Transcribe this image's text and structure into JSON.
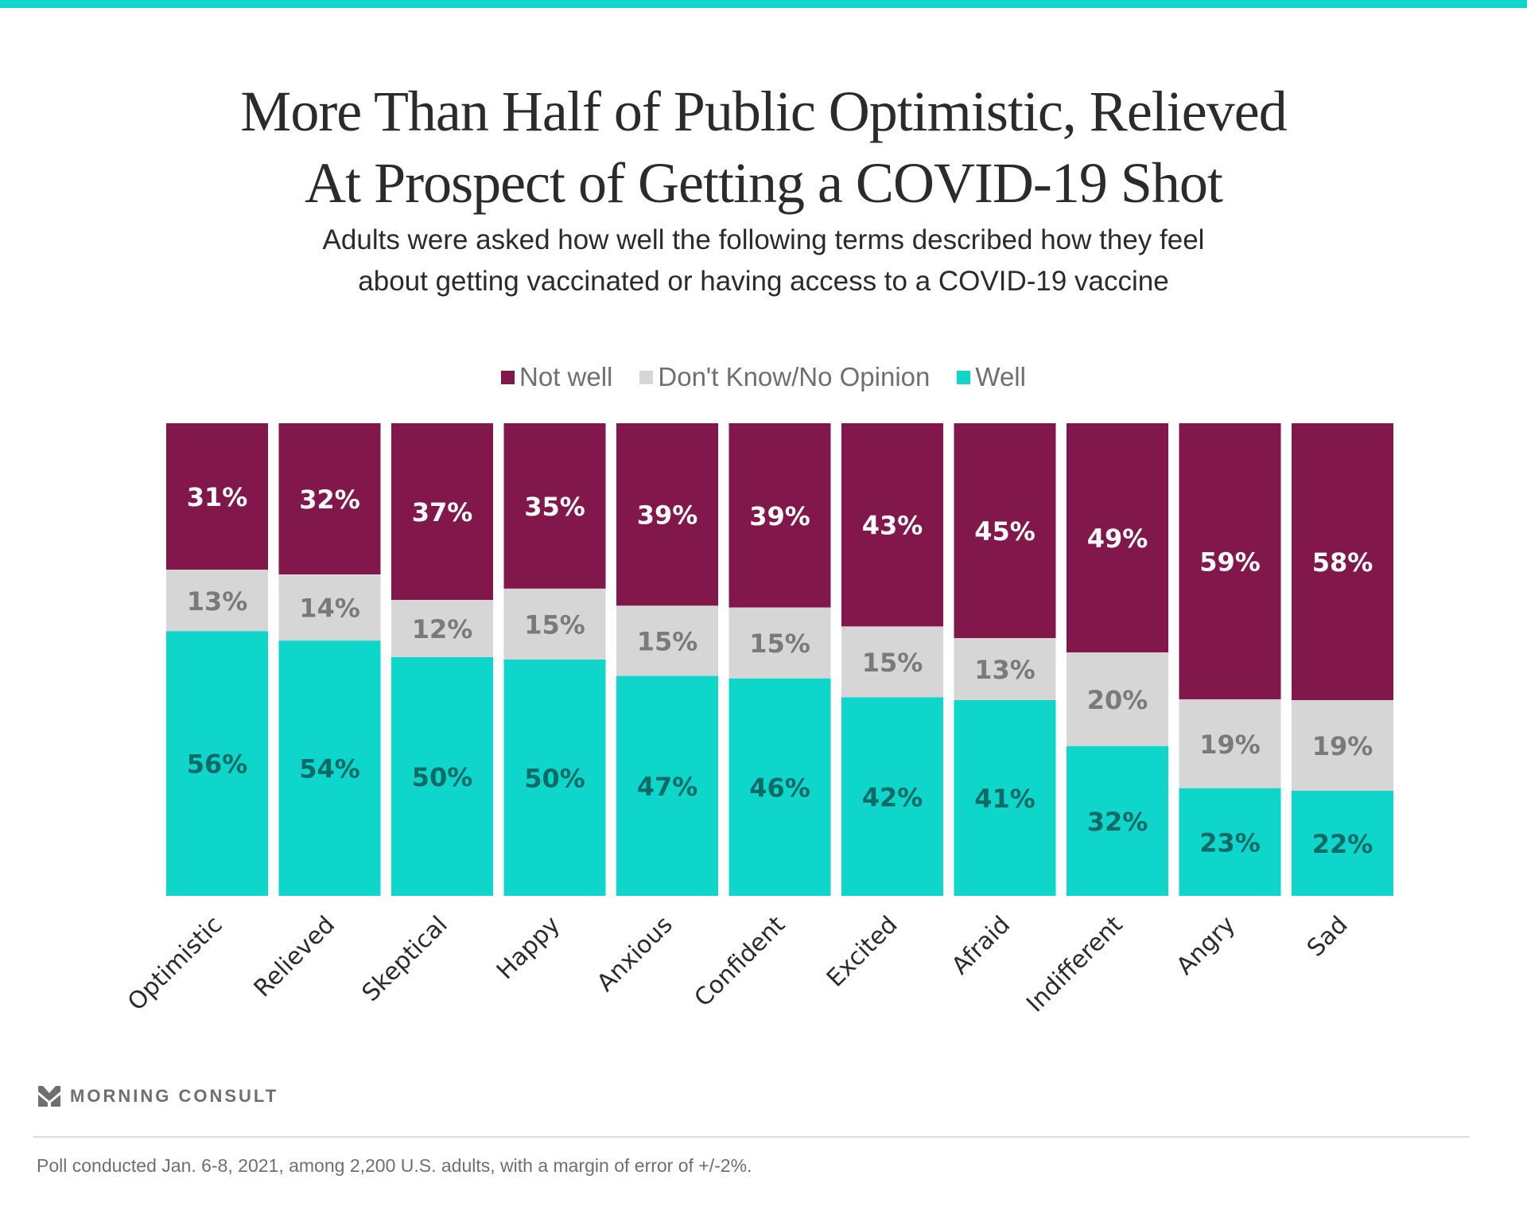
{
  "header": {
    "title_line1": "More Than Half of Public Optimistic, Relieved",
    "title_line2": "At Prospect of Getting a COVID-19 Shot",
    "subtitle_line1": "Adults were asked how well the following terms described how they feel",
    "subtitle_line2": "about getting vaccinated or having access to a COVID-19 vaccine"
  },
  "colors": {
    "accent_bar": "#0ED6CB",
    "not_well": "#82174C",
    "dont_know": "#D6D6D6",
    "well": "#0ED6CB",
    "not_well_label": "#FFFFFF",
    "dont_know_label": "#7A7A7A",
    "well_label": "#0A6A66"
  },
  "chart_data": {
    "type": "bar",
    "stacked": true,
    "normalized": true,
    "title": "More Than Half of Public Optimistic, Relieved At Prospect of Getting a COVID-19 Shot",
    "subtitle": "Adults were asked how well the following terms described how they feel about getting vaccinated or having access to a COVID-19 vaccine",
    "xlabel": "",
    "ylabel": "",
    "ylim": [
      0,
      100
    ],
    "grid": false,
    "legend_position": "top-center",
    "categories": [
      "Optimistic",
      "Relieved",
      "Skeptical",
      "Happy",
      "Anxious",
      "Confident",
      "Excited",
      "Afraid",
      "Indifferent",
      "Angry",
      "Sad"
    ],
    "series": [
      {
        "name": "Not well",
        "color": "#82174C",
        "values": [
          31,
          32,
          37,
          35,
          39,
          39,
          43,
          45,
          49,
          59,
          58
        ]
      },
      {
        "name": "Don't Know/No Opinion",
        "color": "#D6D6D6",
        "values": [
          13,
          14,
          12,
          15,
          15,
          15,
          15,
          13,
          20,
          19,
          19
        ]
      },
      {
        "name": "Well",
        "color": "#0ED6CB",
        "values": [
          56,
          54,
          50,
          50,
          47,
          46,
          42,
          41,
          32,
          23,
          22
        ]
      }
    ],
    "value_suffix": "%"
  },
  "legend": [
    {
      "label": "Not well",
      "color": "#82174C"
    },
    {
      "label": "Don't Know/No Opinion",
      "color": "#D6D6D6"
    },
    {
      "label": "Well",
      "color": "#0ED6CB"
    }
  ],
  "footer": {
    "brand": "MORNING CONSULT",
    "brand_icon": "morning-consult-logo-icon",
    "note": "Poll conducted Jan. 6-8, 2021, among 2,200 U.S. adults, with a margin of error of +/-2%."
  }
}
